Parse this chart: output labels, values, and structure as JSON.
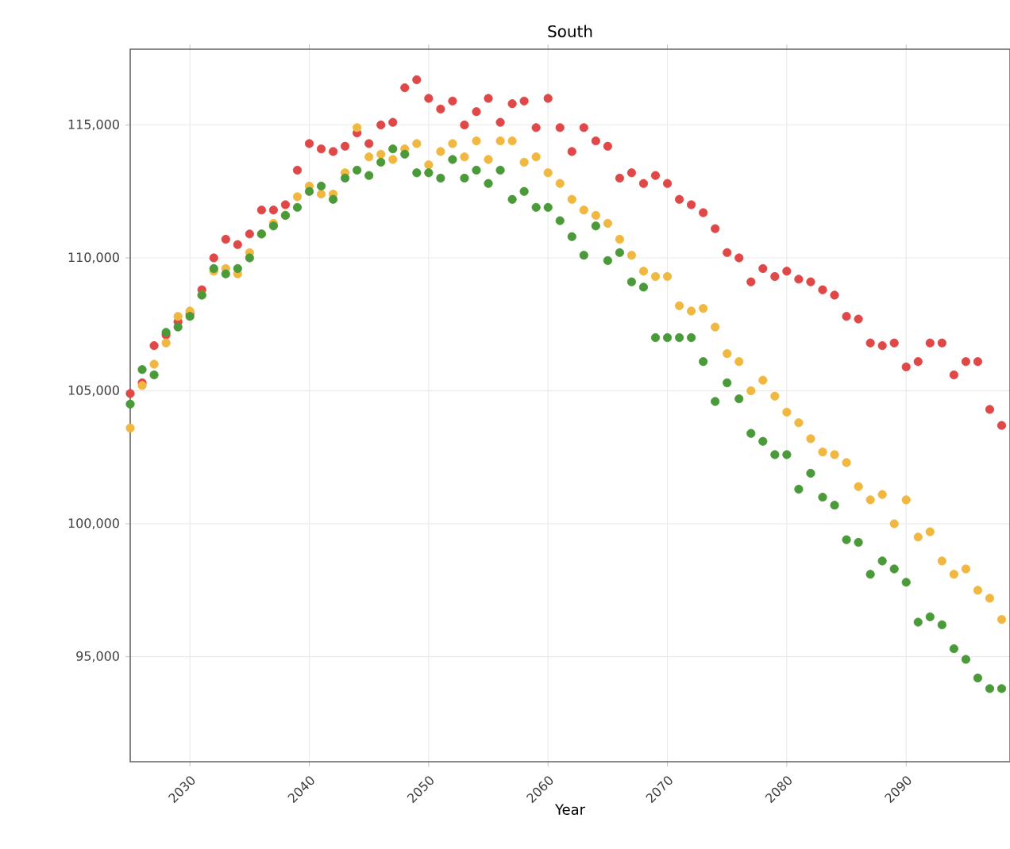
{
  "chart_data": {
    "type": "scatter",
    "title": "South",
    "xlabel": "Year",
    "x": [
      2025,
      2026,
      2027,
      2028,
      2029,
      2030,
      2031,
      2032,
      2033,
      2034,
      2035,
      2036,
      2037,
      2038,
      2039,
      2040,
      2041,
      2042,
      2043,
      2044,
      2045,
      2046,
      2047,
      2048,
      2049,
      2050,
      2051,
      2052,
      2053,
      2054,
      2055,
      2056,
      2057,
      2058,
      2059,
      2060,
      2061,
      2062,
      2063,
      2064,
      2065,
      2066,
      2067,
      2068,
      2069,
      2070,
      2071,
      2072,
      2073,
      2074,
      2075,
      2076,
      2077,
      2078,
      2079,
      2080,
      2081,
      2082,
      2083,
      2084,
      2085,
      2086,
      2087,
      2088,
      2089,
      2090,
      2091,
      2092,
      2093,
      2094,
      2095,
      2096,
      2097,
      2098
    ],
    "series": [
      {
        "color": "#e04848",
        "values": [
          104900,
          105300,
          106700,
          107100,
          107600,
          107900,
          108800,
          110000,
          110700,
          110500,
          110900,
          111800,
          111800,
          112000,
          113300,
          114300,
          114100,
          114000,
          114200,
          114700,
          114300,
          115000,
          115100,
          116400,
          116700,
          116000,
          115600,
          115900,
          115000,
          115500,
          116000,
          115100,
          115800,
          115900,
          114900,
          116000,
          114900,
          114000,
          114900,
          114400,
          114200,
          113000,
          113200,
          112800,
          113100,
          112800,
          112200,
          112000,
          111700,
          111100,
          110200,
          110000,
          109100,
          109600,
          109300,
          109500,
          109200,
          109100,
          108800,
          108600,
          107800,
          107700,
          106800,
          106700,
          106800,
          105900,
          106100,
          106800,
          106800,
          105600,
          106100,
          106100,
          104300,
          103700
        ]
      },
      {
        "color": "#f0b840",
        "values": [
          103600,
          105200,
          106000,
          106800,
          107800,
          108000,
          108600,
          109500,
          109600,
          109400,
          110200,
          110900,
          111300,
          111600,
          112300,
          112700,
          112400,
          112400,
          113200,
          114900,
          113800,
          113900,
          113700,
          114100,
          114300,
          113500,
          114000,
          114300,
          113800,
          114400,
          113700,
          114400,
          114400,
          113600,
          113800,
          113200,
          112800,
          112200,
          111800,
          111600,
          111300,
          110700,
          110100,
          109500,
          109300,
          109300,
          108200,
          108000,
          108100,
          107400,
          106400,
          106100,
          105000,
          105400,
          104800,
          104200,
          103800,
          103200,
          102700,
          102600,
          102300,
          101400,
          100900,
          101100,
          100000,
          100900,
          99500,
          99700,
          98600,
          98100,
          98300,
          97500,
          97200,
          96400
        ]
      },
      {
        "color": "#4a9a3a",
        "values": [
          104500,
          105800,
          105600,
          107200,
          107400,
          107800,
          108600,
          109600,
          109400,
          109600,
          110000,
          110900,
          111200,
          111600,
          111900,
          112500,
          112700,
          112200,
          113000,
          113300,
          113100,
          113600,
          114100,
          113900,
          113200,
          113200,
          113000,
          113700,
          113000,
          113300,
          112800,
          113300,
          112200,
          112500,
          111900,
          111900,
          111400,
          110800,
          110100,
          111200,
          109900,
          110200,
          109100,
          108900,
          107000,
          107000,
          107000,
          107000,
          106100,
          104600,
          105300,
          104700,
          103400,
          103100,
          102600,
          102600,
          101300,
          101900,
          101000,
          100700,
          99400,
          99300,
          98100,
          98600,
          98300,
          97800,
          96300,
          96500,
          96200,
          95300,
          94900,
          94200,
          93800,
          93800
        ]
      }
    ],
    "xlim": [
      2025,
      2098.7
    ],
    "ylim": [
      91050,
      117850
    ],
    "xticks": [
      2030,
      2040,
      2050,
      2060,
      2070,
      2080,
      2090
    ],
    "yticks": [
      {
        "value": 95000,
        "label": "95,000"
      },
      {
        "value": 100000,
        "label": "100,000"
      },
      {
        "value": 105000,
        "label": "105,000"
      },
      {
        "value": 110000,
        "label": "110,000"
      },
      {
        "value": 115000,
        "label": "115,000"
      }
    ],
    "grid": true,
    "marker": "circle"
  }
}
